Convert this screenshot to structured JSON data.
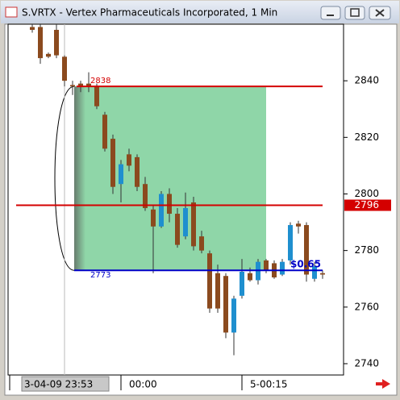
{
  "window_title": "S.VRTX - Vertex Pharmaceuticals Incorporated, 1 Min",
  "chart_data": {
    "type": "candlestick",
    "categories": [
      null,
      null,
      null,
      null,
      "3-04-09 23:53",
      null,
      null,
      null,
      null,
      null,
      null,
      "00:00",
      null,
      null,
      null,
      null,
      null,
      null,
      null,
      null,
      null,
      null,
      null,
      null,
      null,
      null,
      "5-00:15",
      null,
      null,
      null,
      null,
      null,
      null,
      null,
      null,
      null,
      null
    ],
    "open": [
      2859,
      2859,
      2849.5,
      2858,
      2848.5,
      2838.5,
      2839,
      2839,
      2838,
      2828,
      2819.5,
      2803.5,
      2814,
      2813,
      2803.5,
      2794.5,
      2788.5,
      2800,
      2793,
      2785,
      2797,
      2785,
      2779,
      2772,
      2771,
      2751,
      2764,
      2772,
      2769.5,
      2776.5,
      2775.5,
      2771.5,
      2776.5,
      2789.5,
      2789,
      2770,
      2772
    ],
    "high": [
      2860,
      2860,
      2850,
      2860,
      2849,
      2840,
      2840,
      2843,
      2839,
      2829,
      2821,
      2812,
      2816,
      2814,
      2806,
      2796,
      2801,
      2802,
      2795,
      2800.5,
      2799,
      2787,
      2780,
      2775,
      2772,
      2764,
      2777,
      2774,
      2777,
      2777,
      2776.5,
      2777,
      2790,
      2790.5,
      2790,
      2776,
      2773
    ],
    "low": [
      2857,
      2846,
      2848,
      2848,
      2838,
      2835,
      2836,
      2836,
      2830,
      2815,
      2800,
      2797,
      2808,
      2801,
      2794,
      2772,
      2788,
      2790,
      2781,
      2784,
      2780,
      2779,
      2758,
      2758,
      2749,
      2743,
      2763,
      2769,
      2768,
      2772,
      2770,
      2771,
      2775,
      2786,
      2769,
      2769,
      2770
    ],
    "close": [
      2858,
      2848,
      2848.5,
      2849,
      2840,
      2838,
      2838,
      2838,
      2831,
      2816,
      2802.5,
      2810.5,
      2810,
      2802.5,
      2795,
      2788.5,
      2800,
      2793,
      2782,
      2795,
      2781.5,
      2780,
      2759.5,
      2759.5,
      2751,
      2763,
      2772.5,
      2769.5,
      2776,
      2773,
      2770.5,
      2776,
      2789,
      2788.5,
      2771.5,
      2774.5,
      2771.5
    ],
    "up_color": "#1f8fcf",
    "down_color": "#8b4a1e",
    "ylim": [
      2736,
      2860
    ],
    "yticks": [
      2740,
      2760,
      2780,
      2800,
      2820,
      2840
    ],
    "hlines": [
      {
        "value": 2838,
        "color": "#d40000"
      },
      {
        "value": 2796,
        "color": "#d40000"
      },
      {
        "value": 2773,
        "color": "#0000c8"
      }
    ],
    "zone_color": "#8fd6a8",
    "annotation": "$0.65"
  }
}
